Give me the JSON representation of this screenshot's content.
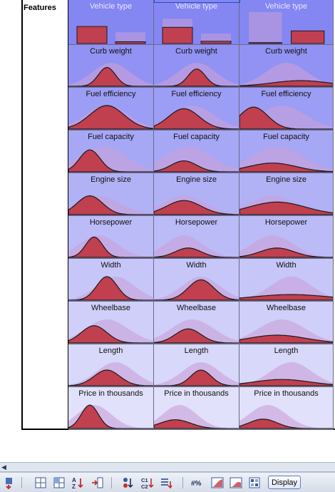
{
  "table": {
    "features_label": "Features",
    "columns": 3,
    "rows": [
      {
        "title": "Vehicle type",
        "kind": "bar",
        "shade": "#8486f2"
      },
      {
        "title": "Curb weight",
        "kind": "dist",
        "shade": "#9192f3"
      },
      {
        "title": "Fuel efficiency",
        "kind": "dist",
        "shade": "#9c9df4"
      },
      {
        "title": "Fuel capacity",
        "kind": "dist",
        "shade": "#a6a7f5"
      },
      {
        "title": "Engine size",
        "kind": "dist",
        "shade": "#b1b1f6"
      },
      {
        "title": "Horsepower",
        "kind": "dist",
        "shade": "#bbbbf7"
      },
      {
        "title": "Width",
        "kind": "dist",
        "shade": "#c6c6f8"
      },
      {
        "title": "Wheelbase",
        "kind": "dist",
        "shade": "#cfcff9"
      },
      {
        "title": "Length",
        "kind": "dist",
        "shade": "#d8d8fa"
      },
      {
        "title": "Price in thousands",
        "kind": "dist",
        "shade": "#e1e1fb"
      }
    ]
  },
  "colors": {
    "background_dist": "#c9a0d8",
    "foreground_dist": "#c0404f",
    "foreground_stroke": "#1a1a1a"
  },
  "toolbar": {
    "display_label": "Display",
    "icons": [
      "move-icon",
      "grid-icon",
      "grid-alt-icon",
      "sort-az-icon",
      "insert-column-icon",
      "sort-down-icon",
      "c1c2-icon",
      "list-sort-icon",
      "percent-icon",
      "area-chart-icon",
      "area-chart-alt-icon",
      "layout-icon"
    ]
  }
}
